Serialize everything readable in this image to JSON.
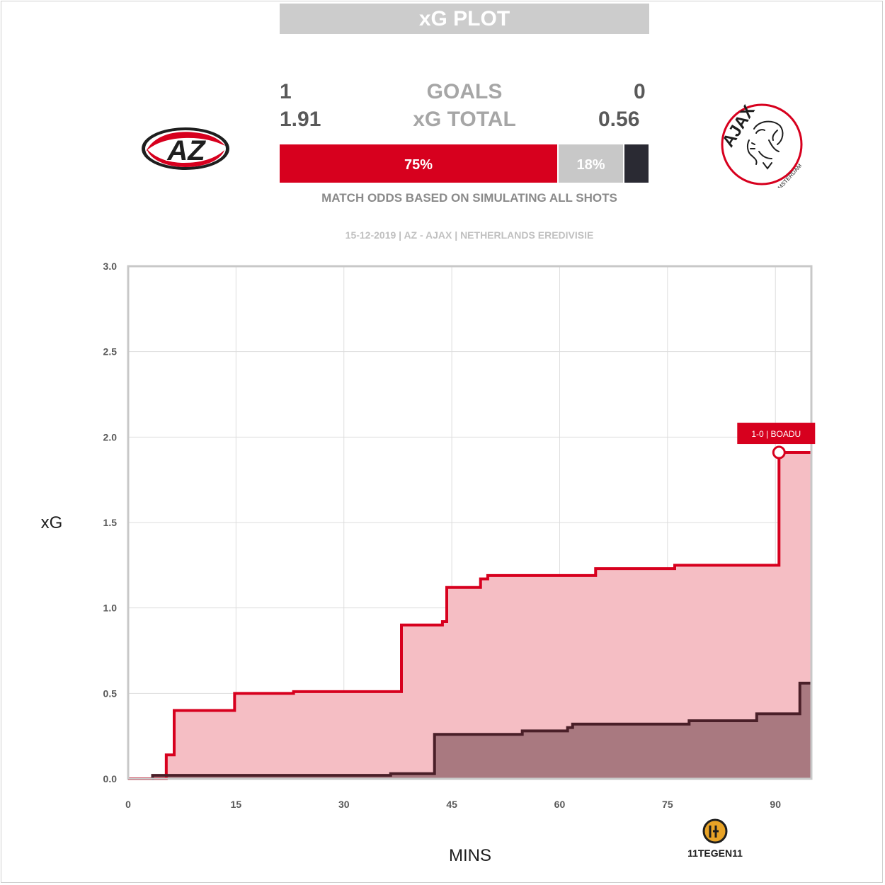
{
  "header": {
    "title": "xG PLOT"
  },
  "scoreboard": {
    "home_goals": "1",
    "away_goals": "0",
    "goals_label": "GOALS",
    "home_xg": "1.91",
    "away_xg": "0.56",
    "xg_label": "xG TOTAL"
  },
  "odds": {
    "home_win_pct": 75,
    "draw_pct": 18,
    "away_win_pct": 7,
    "home_label": "75%",
    "draw_label": "18%",
    "note": "MATCH ODDS BASED ON SIMULATING ALL SHOTS"
  },
  "teams": {
    "home_logo_text": "AZ",
    "away_logo_text": "AJAX",
    "away_logo_subtext": "AMSTERDAM"
  },
  "match_info": "15-12-2019 | AZ - AJAX | NETHERLANDS EREDIVISIE",
  "branding": {
    "text": "11TEGEN11"
  },
  "colors": {
    "home": "#d7001e",
    "home_fill": "#f5bec4",
    "away": "#4a1f28",
    "away_fill": "#9b6d74",
    "draw": "#c8c8c8",
    "away_bar": "#2a2a33",
    "grid": "#dddddd"
  },
  "chart_data": {
    "type": "line",
    "step": true,
    "xlabel": "MINS",
    "ylabel": "xG",
    "xlim": [
      0,
      95
    ],
    "ylim": [
      0,
      3
    ],
    "xticks": [
      0,
      15,
      30,
      45,
      60,
      75,
      90
    ],
    "yticks": [
      "0.0",
      "0.5",
      "1.0",
      "1.5",
      "2.0",
      "2.5",
      "3.0"
    ],
    "grid": true,
    "series": [
      {
        "team": "home",
        "points": [
          [
            0,
            0
          ],
          [
            5.3,
            0.14
          ],
          [
            6.4,
            0.4
          ],
          [
            14.8,
            0.5
          ],
          [
            23,
            0.51
          ],
          [
            38,
            0.9
          ],
          [
            43.7,
            0.92
          ],
          [
            44.3,
            1.12
          ],
          [
            49,
            1.17
          ],
          [
            50,
            1.19
          ],
          [
            65,
            1.23
          ],
          [
            76,
            1.25
          ],
          [
            90.5,
            1.91
          ],
          [
            95,
            1.91
          ]
        ]
      },
      {
        "team": "away",
        "points": [
          [
            3.3,
            0
          ],
          [
            3.4,
            0.02
          ],
          [
            36.5,
            0.03
          ],
          [
            42.6,
            0.26
          ],
          [
            54.8,
            0.28
          ],
          [
            61.1,
            0.3
          ],
          [
            61.8,
            0.32
          ],
          [
            78,
            0.34
          ],
          [
            87.4,
            0.38
          ],
          [
            93.4,
            0.56
          ],
          [
            95,
            0.56
          ]
        ]
      }
    ],
    "annotations": [
      {
        "label": "1-0 | BOADU",
        "x": 90.5,
        "y": 1.91,
        "series": "home"
      }
    ]
  }
}
